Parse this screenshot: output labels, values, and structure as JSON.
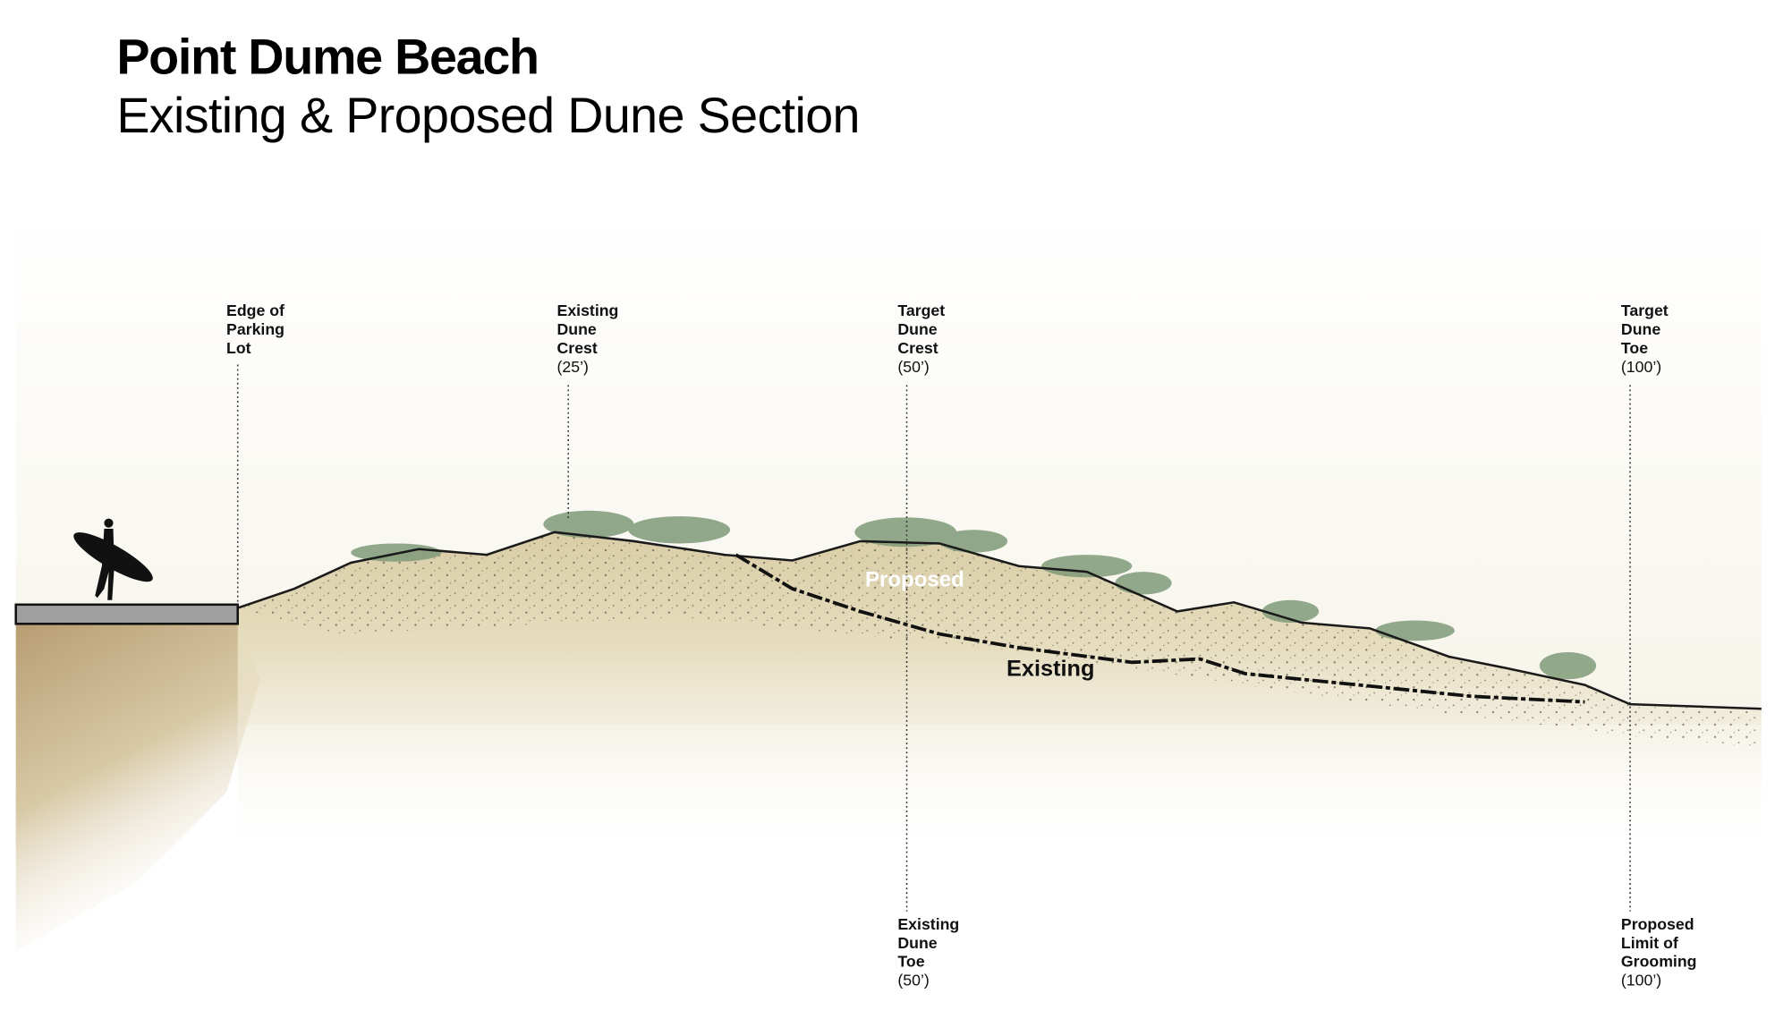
{
  "header": {
    "title": "Point Dume Beach",
    "subtitle": "Existing & Proposed Dune Section"
  },
  "labels": [
    {
      "lines": [
        "Edge of",
        "Parking",
        "Lot"
      ]
    },
    {
      "lines": [
        "Existing",
        "Dune",
        "Crest",
        "(25’)"
      ]
    },
    {
      "lines": [
        "Target",
        "Dune",
        "Crest",
        "(50’)"
      ]
    },
    {
      "lines": [
        "Target",
        "Dune",
        "Toe",
        "(100’)"
      ]
    },
    {
      "lines": [
        "Existing",
        "Dune",
        "Toe",
        "(50’)"
      ]
    },
    {
      "lines": [
        "Proposed",
        "Limit of",
        "Grooming",
        "(100’)"
      ]
    }
  ],
  "section_labels": {
    "proposed": "Proposed",
    "existing": "Existing"
  }
}
